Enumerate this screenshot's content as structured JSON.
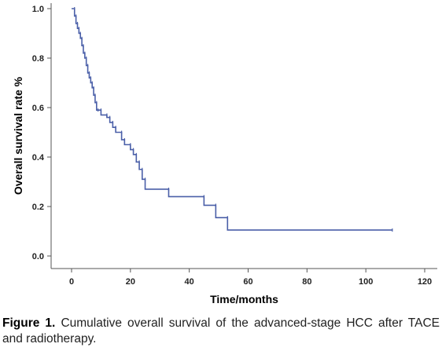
{
  "chart_data": {
    "type": "line",
    "xlabel": "Time/months",
    "ylabel": "Overall survival rate %",
    "xlim": [
      0,
      120
    ],
    "ylim": [
      0,
      1.0
    ],
    "x_ticks": [
      0,
      20,
      40,
      60,
      80,
      100,
      120
    ],
    "y_ticks": [
      0.0,
      0.2,
      0.4,
      0.6,
      0.8,
      1.0
    ],
    "x_tick_labels": [
      "0",
      "20",
      "40",
      "60",
      "80",
      "100",
      "120"
    ],
    "y_tick_labels": [
      "0.0",
      "0.2",
      "0.4",
      "0.6",
      "0.8",
      "1.0"
    ],
    "grid": false,
    "line_color": "#4a5fa8",
    "series": [
      {
        "step": true,
        "x": [
          0,
          1,
          1.5,
          2,
          2.5,
          3,
          3.5,
          4,
          4.5,
          5,
          5.5,
          6,
          6.5,
          7,
          7.5,
          8,
          8.5,
          9,
          10,
          12,
          13,
          14,
          15,
          17,
          18,
          20,
          21,
          22,
          23,
          24,
          25,
          33,
          45,
          49,
          53,
          109
        ],
        "y": [
          1.0,
          0.97,
          0.94,
          0.92,
          0.9,
          0.88,
          0.85,
          0.82,
          0.8,
          0.77,
          0.74,
          0.72,
          0.7,
          0.68,
          0.65,
          0.62,
          0.59,
          0.59,
          0.57,
          0.56,
          0.54,
          0.52,
          0.5,
          0.47,
          0.45,
          0.43,
          0.41,
          0.38,
          0.35,
          0.31,
          0.27,
          0.24,
          0.205,
          0.155,
          0.105,
          0.105
        ]
      }
    ]
  },
  "caption": {
    "label": "Figure 1.",
    "text": "Cumulative overall survival of the advanced-stage HCC after TACE and radiotherapy."
  }
}
